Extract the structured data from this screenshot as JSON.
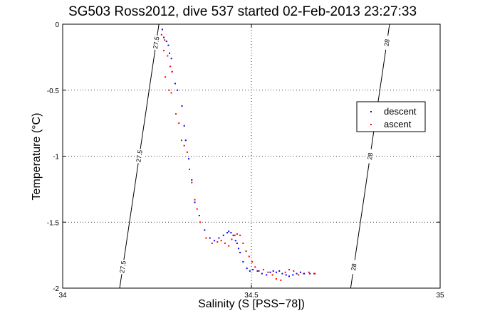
{
  "chart_data": {
    "type": "scatter",
    "title": "SG503 Ross2012, dive 537 started 02-Feb-2013 23:27:33",
    "xlabel": "Salinity (S [PSS−78])",
    "ylabel": "Temperature (°C)",
    "xlim": [
      34,
      35
    ],
    "ylim": [
      -2,
      0
    ],
    "xticks": [
      "34",
      "34.5",
      "35"
    ],
    "yticks": [
      "0",
      "-0.5",
      "-1",
      "-1.5",
      "-2"
    ],
    "grid": true,
    "legend_position": "right",
    "series": [
      {
        "name": "descent",
        "color": "#0000ff",
        "x": [
          34.264,
          34.268,
          34.275,
          34.28,
          34.283,
          34.288,
          34.29,
          34.298,
          34.304,
          34.316,
          34.322,
          34.326,
          34.334,
          34.342,
          34.35,
          34.362,
          34.376,
          34.39,
          34.402,
          34.414,
          34.426,
          34.436,
          34.44,
          34.446,
          34.452,
          34.458,
          34.462,
          34.466,
          34.47,
          34.478,
          34.488,
          34.496,
          34.504,
          34.516,
          34.528,
          34.54,
          34.55,
          34.558,
          34.566,
          34.574,
          34.582,
          34.592,
          34.6,
          34.61,
          34.62,
          34.63,
          34.64,
          34.655,
          34.668
        ],
        "y": [
          -0.04,
          -0.1,
          -0.13,
          -0.16,
          -0.22,
          -0.26,
          -0.36,
          -0.45,
          -0.5,
          -0.62,
          -0.77,
          -0.88,
          -1.02,
          -1.18,
          -1.35,
          -1.45,
          -1.56,
          -1.62,
          -1.64,
          -1.62,
          -1.6,
          -1.58,
          -1.57,
          -1.58,
          -1.6,
          -1.64,
          -1.66,
          -1.7,
          -1.73,
          -1.8,
          -1.85,
          -1.87,
          -1.86,
          -1.87,
          -1.89,
          -1.9,
          -1.88,
          -1.87,
          -1.88,
          -1.87,
          -1.89,
          -1.9,
          -1.91,
          -1.9,
          -1.89,
          -1.88,
          -1.89,
          -1.89,
          -1.89
        ]
      },
      {
        "name": "ascent",
        "color": "#ff0000",
        "x": [
          34.262,
          34.27,
          34.268,
          34.278,
          34.285,
          34.29,
          34.272,
          34.282,
          34.288,
          34.3,
          34.308,
          34.315,
          34.322,
          34.33,
          34.336,
          34.342,
          34.35,
          34.356,
          34.364,
          34.38,
          34.396,
          34.41,
          34.42,
          34.43,
          34.44,
          34.448,
          34.456,
          34.462,
          34.47,
          34.478,
          34.486,
          34.494,
          34.502,
          34.51,
          34.52,
          34.532,
          34.544,
          34.556,
          34.566,
          34.578,
          34.59,
          34.6,
          34.612,
          34.625,
          34.638,
          34.652,
          34.666
        ],
        "y": [
          -0.08,
          -0.12,
          -0.2,
          -0.24,
          -0.32,
          -0.36,
          -0.4,
          -0.5,
          -0.52,
          -0.68,
          -0.75,
          -0.88,
          -0.92,
          -0.97,
          -1.1,
          -1.2,
          -1.33,
          -1.4,
          -1.5,
          -1.62,
          -1.66,
          -1.65,
          -1.64,
          -1.66,
          -1.68,
          -1.63,
          -1.6,
          -1.59,
          -1.6,
          -1.66,
          -1.72,
          -1.76,
          -1.8,
          -1.84,
          -1.87,
          -1.86,
          -1.88,
          -1.9,
          -1.93,
          -1.94,
          -1.88,
          -1.86,
          -1.87,
          -1.9,
          -1.89,
          -1.88,
          -1.89
        ]
      }
    ],
    "contours": [
      {
        "label": "27.5",
        "x1": 34.151,
        "y1": -2.0,
        "x2": 34.255,
        "y2": 0.0
      },
      {
        "label": "28",
        "x1": 34.763,
        "y1": -2.0,
        "x2": 34.866,
        "y2": 0.0
      }
    ]
  }
}
